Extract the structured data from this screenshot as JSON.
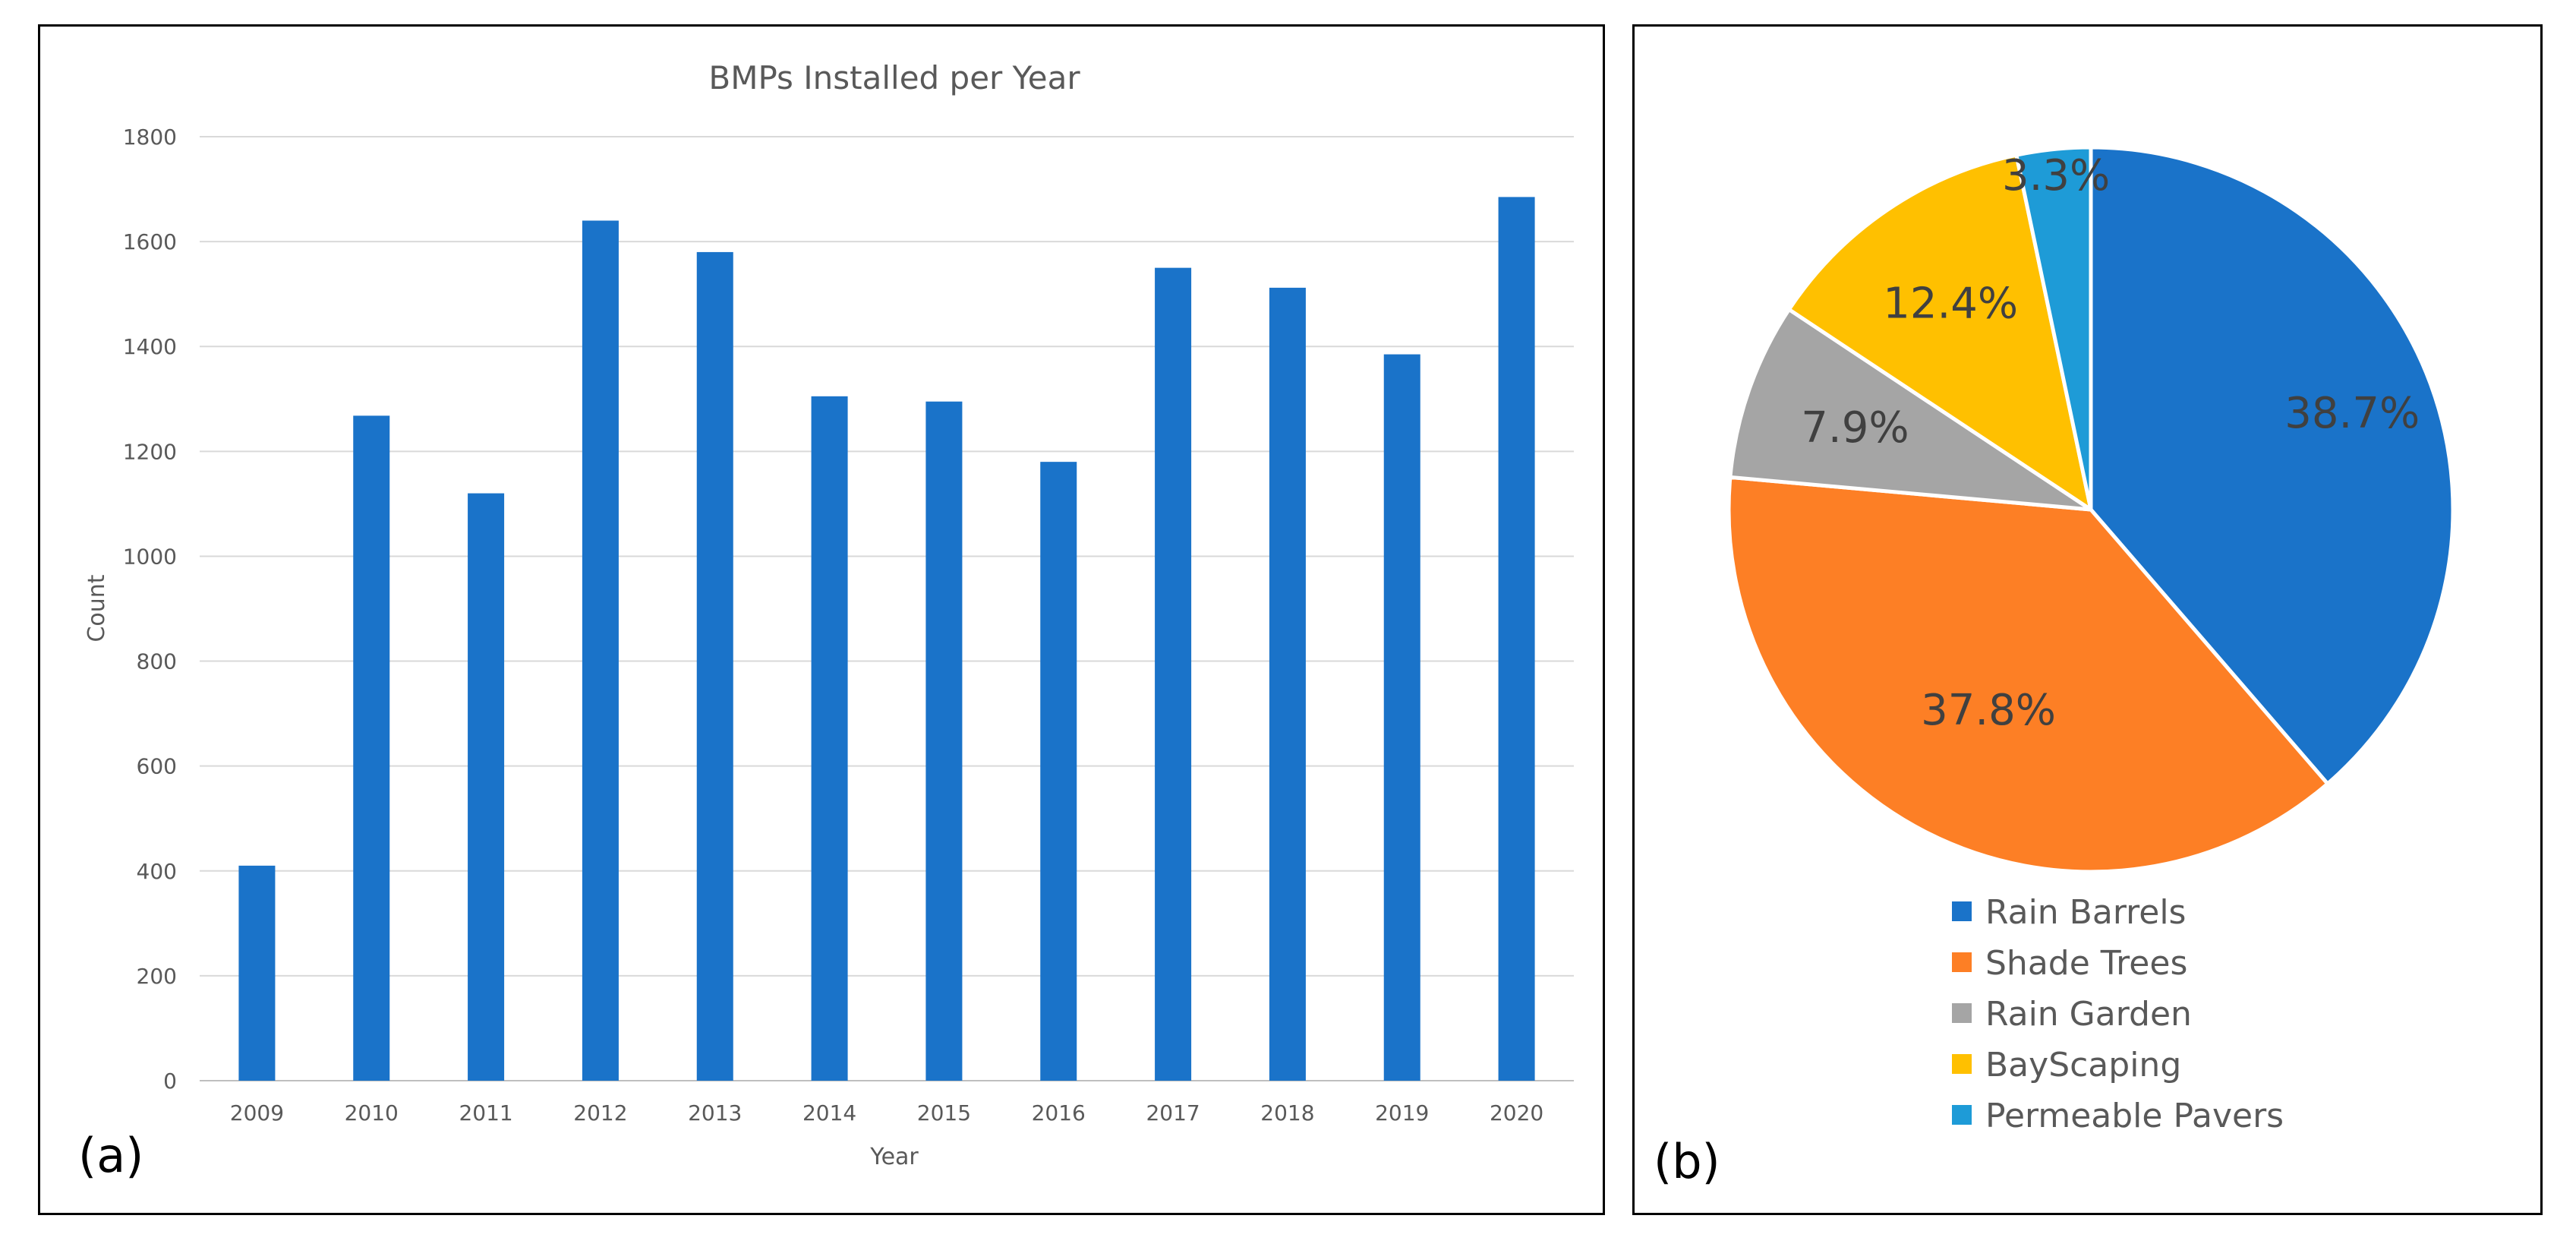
{
  "chart_data": [
    {
      "type": "bar",
      "title": "BMPs Installed per Year",
      "xlabel": "Year",
      "ylabel": "Count",
      "ylim": [
        0,
        1800
      ],
      "yticks": [
        0,
        200,
        400,
        600,
        800,
        1000,
        1200,
        1400,
        1600,
        1800
      ],
      "grid": true,
      "color": "#1a73c9",
      "categories": [
        "2009",
        "2010",
        "2011",
        "2012",
        "2013",
        "2014",
        "2015",
        "2016",
        "2017",
        "2018",
        "2019",
        "2020"
      ],
      "values": [
        410,
        1268,
        1120,
        1640,
        1580,
        1305,
        1295,
        1180,
        1550,
        1512,
        1385,
        1685
      ],
      "panel_label": "(a)"
    },
    {
      "type": "pie",
      "legend_position": "bottom",
      "labels": [
        "Rain Barrels",
        "Shade Trees",
        "Rain Garden",
        "BayScaping",
        "Permeable Pavers"
      ],
      "values": [
        38.7,
        37.8,
        7.9,
        12.4,
        3.3
      ],
      "value_labels": [
        "38.7%",
        "37.8%",
        "7.9%",
        "12.4%",
        "3.3%"
      ],
      "colors": [
        "#1a73c9",
        "#fd7f25",
        "#a5a5a5",
        "#ffc000",
        "#1e9bd7"
      ],
      "panel_label": "(b)"
    }
  ]
}
